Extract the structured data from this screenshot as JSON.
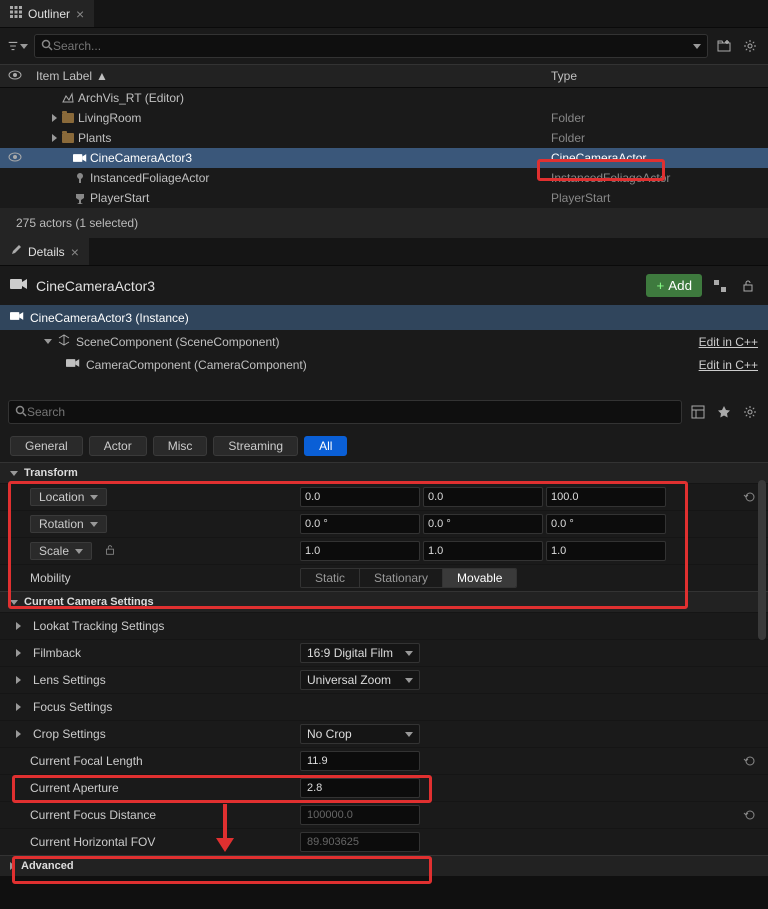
{
  "outliner": {
    "tab_title": "Outliner",
    "search_placeholder": "Search...",
    "col_label": "Item Label",
    "col_type": "Type",
    "items": [
      {
        "indent": 48,
        "icon": "level",
        "label": "ArchVis_RT (Editor)",
        "iconcolor": "#aaa"
      },
      {
        "indent": 48,
        "icon": "folder",
        "label": "LivingRoom",
        "type": "Folder",
        "arrow": "right",
        "faded": true
      },
      {
        "indent": 48,
        "icon": "folder",
        "label": "Plants",
        "type": "Folder",
        "arrow": "right"
      },
      {
        "indent": 60,
        "icon": "camera",
        "label": "CineCameraActor3",
        "type": "CineCameraActor",
        "selected": true,
        "eye": true
      },
      {
        "indent": 60,
        "icon": "foliage",
        "label": "InstancedFoliageActor",
        "type": "InstancedFoliageActor"
      },
      {
        "indent": 60,
        "icon": "player",
        "label": "PlayerStart",
        "type": "PlayerStart"
      }
    ],
    "status": "275 actors (1 selected)"
  },
  "details": {
    "tab_title": "Details",
    "actor_name": "CineCameraActor3",
    "add_label": "Add",
    "instance_label": "CineCameraActor3 (Instance)",
    "components": [
      {
        "label": "SceneComponent (SceneComponent)",
        "link": "Edit in C++",
        "indent": 28,
        "arrow": true,
        "icon": "scene"
      },
      {
        "label": "CameraComponent (CameraComponent)",
        "link": "Edit in C++",
        "indent": 50,
        "icon": "camera"
      }
    ],
    "search_placeholder": "Search",
    "filters": [
      "General",
      "Actor",
      "Misc",
      "Streaming",
      "All"
    ],
    "filter_active": 4,
    "transform": {
      "title": "Transform",
      "location": {
        "label": "Location",
        "x": "0.0",
        "y": "0.0",
        "z": "100.0"
      },
      "rotation": {
        "label": "Rotation",
        "x": "0.0 °",
        "y": "0.0 °",
        "z": "0.0 °"
      },
      "scale": {
        "label": "Scale",
        "x": "1.0",
        "y": "1.0",
        "z": "1.0"
      },
      "mobility": {
        "label": "Mobility",
        "options": [
          "Static",
          "Stationary",
          "Movable"
        ],
        "active": 2
      }
    },
    "camera": {
      "title": "Current Camera Settings",
      "lookat": "Lookat Tracking Settings",
      "filmback": {
        "label": "Filmback",
        "value": "16:9 Digital Film"
      },
      "lens": {
        "label": "Lens Settings",
        "value": "Universal Zoom"
      },
      "focus": "Focus Settings",
      "crop": {
        "label": "Crop Settings",
        "value": "No Crop"
      },
      "focal_length": {
        "label": "Current Focal Length",
        "value": "11.9"
      },
      "aperture": {
        "label": "Current Aperture",
        "value": "2.8"
      },
      "focus_dist": {
        "label": "Current Focus Distance",
        "value": "100000.0"
      },
      "hfov": {
        "label": "Current Horizontal FOV",
        "value": "89.903625"
      }
    },
    "advanced": "Advanced"
  },
  "colors": {
    "x": "#d04040",
    "y": "#50c050",
    "z": "#4080e0"
  }
}
